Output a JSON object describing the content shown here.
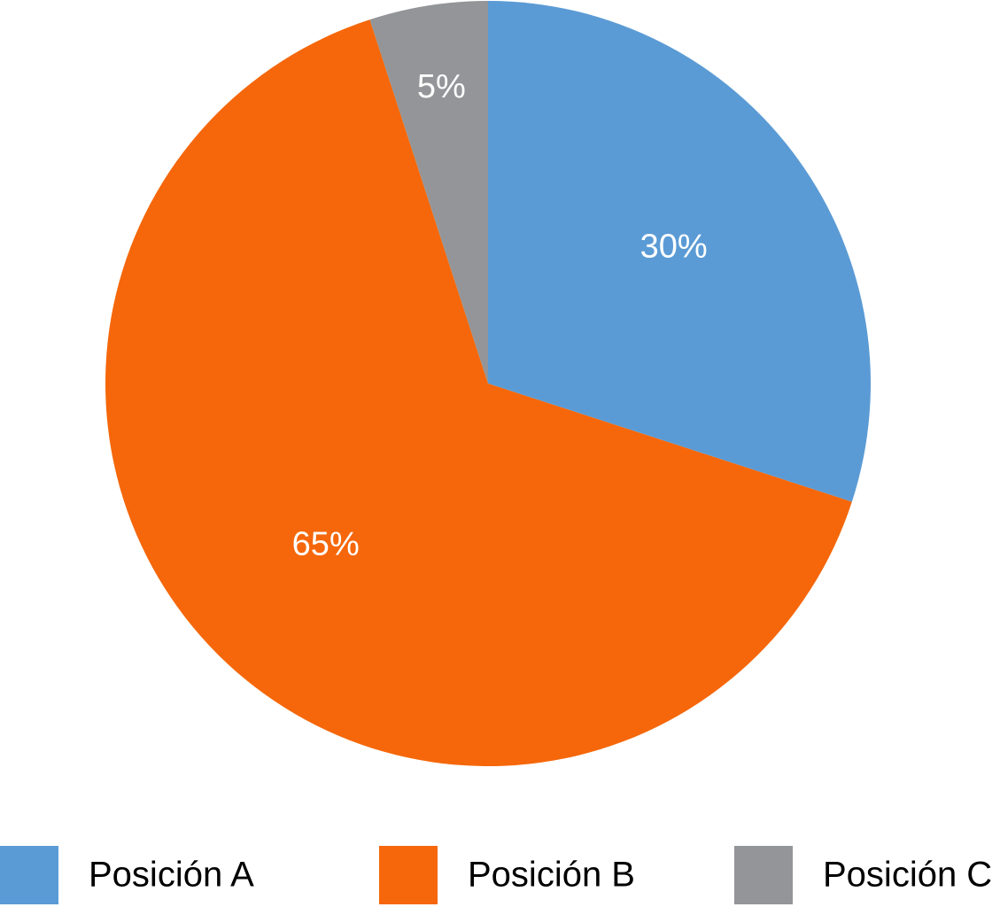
{
  "chart_data": {
    "type": "pie",
    "categories": [
      "Posición A",
      "Posición B",
      "Posición C"
    ],
    "values": [
      30,
      65,
      5
    ],
    "value_labels": [
      "30%",
      "65%",
      "5%"
    ],
    "colors": [
      "#5b9bd5",
      "#f5670a",
      "#939598"
    ]
  }
}
